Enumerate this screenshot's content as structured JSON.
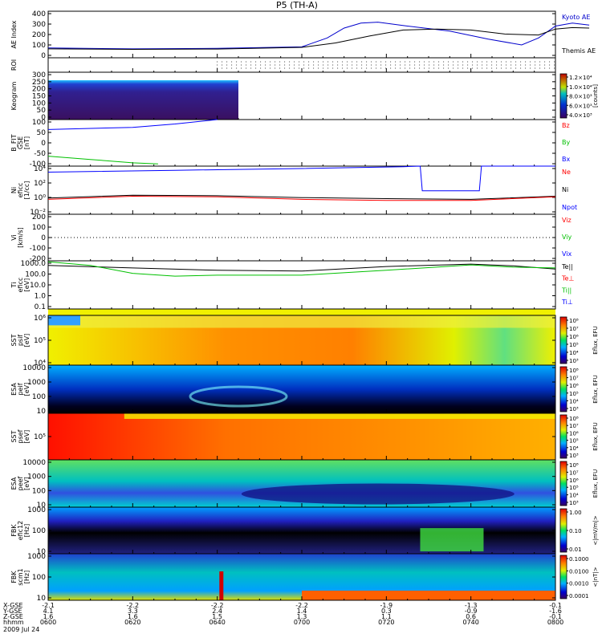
{
  "title": "P5 (TH-A)",
  "colors": {
    "blue": "#0000ff",
    "green": "#00c000",
    "red": "#ff0000",
    "black": "#000000",
    "navy": "#0000cc"
  },
  "panels": [
    {
      "id": "ae",
      "ylabel": [
        "AE Index"
      ],
      "ticks": [
        "400",
        "300",
        "200",
        "100",
        "0"
      ],
      "legend": [
        {
          "text": "Kyoto AE",
          "color": "#0000cc"
        },
        {
          "text": "Themis AE",
          "color": "#000000"
        }
      ]
    },
    {
      "id": "roi",
      "ylabel": [
        "ROI"
      ],
      "ticks": [],
      "legend": []
    },
    {
      "id": "keo",
      "ylabel": [
        "Keogram"
      ],
      "ticks": [
        "300",
        "250",
        "200",
        "150",
        "100",
        "50",
        "0"
      ],
      "legend": [],
      "cbar_label": "[counts]",
      "cbar_ticks": [
        "1.2×10⁴",
        "1.0×10⁴",
        "8.0×10³",
        "6.0×10³",
        "4.0×10³"
      ]
    },
    {
      "id": "bfit",
      "ylabel": [
        "B_FIT",
        "GSE",
        "[nT]"
      ],
      "ticks": [
        "100",
        "50",
        "0",
        "-50",
        "-100"
      ],
      "legend": [
        {
          "text": "Bz",
          "color": "#ff0000"
        },
        {
          "text": "By",
          "color": "#00c000"
        },
        {
          "text": "Bx",
          "color": "#0000ff"
        }
      ]
    },
    {
      "id": "ni",
      "ylabel": [
        "Ni",
        "eficc",
        "[1/cc]"
      ],
      "ticks": [
        "10⁴",
        "10²",
        "10⁰",
        "10⁻²"
      ],
      "legend": [
        {
          "text": "Ne",
          "color": "#ff0000"
        },
        {
          "text": "Ni",
          "color": "#000000"
        },
        {
          "text": "Npot",
          "color": "#0000ff"
        }
      ]
    },
    {
      "id": "vi",
      "ylabel": [
        "Vi",
        "[km/s]"
      ],
      "ticks": [
        "200",
        "100",
        "0",
        "-100",
        "-200"
      ],
      "legend": [
        {
          "text": "Viz",
          "color": "#ff0000"
        },
        {
          "text": "Viy",
          "color": "#00c000"
        },
        {
          "text": "Vix",
          "color": "#0000ff"
        }
      ]
    },
    {
      "id": "ti",
      "ylabel": [
        "Ti",
        "eficc",
        "[eV]"
      ],
      "ticks": [
        "1000.0",
        "100.0",
        "10.0",
        "1.0",
        "0.1"
      ],
      "legend": [
        {
          "text": "Te||",
          "color": "#000000"
        },
        {
          "text": "Te⊥",
          "color": "#ff0000"
        },
        {
          "text": "Ti||",
          "color": "#00c000"
        },
        {
          "text": "Ti⊥",
          "color": "#0000ff"
        }
      ]
    },
    {
      "id": "sst_i",
      "ylabel": [
        "SST",
        "psif",
        "[eV]"
      ],
      "ticks": [
        "10⁶",
        "10⁵",
        "10⁴"
      ],
      "legend": [],
      "cbar_label": "Eflux, EFU",
      "cbar_ticks": [
        "10⁸",
        "10⁷",
        "10⁶",
        "10⁵",
        "10⁴",
        "10³"
      ]
    },
    {
      "id": "esa_i",
      "ylabel": [
        "ESA",
        "peif",
        "[eV]"
      ],
      "ticks": [
        "10000",
        "1000",
        "100",
        "10"
      ],
      "legend": [],
      "cbar_label": "Eflux, EFU",
      "cbar_ticks": [
        "10⁸",
        "10⁷",
        "10⁶",
        "10⁵",
        "10⁴",
        "10³"
      ]
    },
    {
      "id": "sst_e",
      "ylabel": [
        "SST",
        "psef",
        "[eV]"
      ],
      "ticks": [
        "10⁵"
      ],
      "legend": [],
      "cbar_label": "Eflux, EFU",
      "cbar_ticks": [
        "10⁸",
        "10⁷",
        "10⁶",
        "10⁵",
        "10⁴",
        "10³"
      ]
    },
    {
      "id": "esa_e",
      "ylabel": [
        "ESA",
        "peef",
        "[eV]"
      ],
      "ticks": [
        "10000",
        "1000",
        "100",
        "10"
      ],
      "legend": [],
      "cbar_label": "Eflux, EFU",
      "cbar_ticks": [
        "10⁸",
        "10⁷",
        "10⁶",
        "10⁵",
        "10⁴",
        "10³"
      ]
    },
    {
      "id": "fbk_e",
      "ylabel": [
        "FBK",
        "efic12",
        "[Hz]"
      ],
      "ticks": [
        "1000",
        "100",
        "10"
      ],
      "legend": [],
      "cbar_label": "<|mV/m|>",
      "cbar_ticks": [
        "1.00",
        "0.10",
        "0.01"
      ]
    },
    {
      "id": "fbk_b",
      "ylabel": [
        "FBK",
        "scm1",
        "[Hz]"
      ],
      "ticks": [
        "1000",
        "100",
        "10"
      ],
      "legend": [],
      "cbar_label": "<|nT|>",
      "cbar_ticks": [
        "0.1000",
        "0.0100",
        "0.0010",
        "0.0001"
      ]
    }
  ],
  "footer": {
    "row_labels": [
      "X-GSE",
      "Y-GSE",
      "Z-GSE",
      "hhmm",
      "2009 Jul 24"
    ],
    "columns": [
      [
        "-2.1",
        "4.1",
        "1.6",
        "0600"
      ],
      [
        "-2.2",
        "3.3",
        "1.6",
        "0620"
      ],
      [
        "-2.2",
        "2.4",
        "1.5",
        "0640"
      ],
      [
        "-2.2",
        "1.4",
        "1.3",
        "0700"
      ],
      [
        "-1.9",
        "0.3",
        "1.1",
        "0720"
      ],
      [
        "-1.3",
        "-0.9",
        "0.6",
        "0740"
      ],
      [
        "-0.1",
        "-1.6",
        "-0.1",
        "0800"
      ]
    ]
  },
  "chart_data": {
    "type": "line",
    "title": "P5 (TH-A)",
    "x_label": "hhmm",
    "x": [
      "0600",
      "0620",
      "0640",
      "0700",
      "0720",
      "0740",
      "0800"
    ],
    "xlim": [
      "0600",
      "0800"
    ],
    "series": [
      {
        "name": "Kyoto AE",
        "panel": "ae",
        "points": [
          [
            0,
            50
          ],
          [
            20,
            40
          ],
          [
            40,
            45
          ],
          [
            60,
            60
          ],
          [
            66,
            150
          ],
          [
            70,
            250
          ],
          [
            74,
            300
          ],
          [
            78,
            310
          ],
          [
            85,
            270
          ],
          [
            95,
            220
          ],
          [
            104,
            140
          ],
          [
            112,
            80
          ],
          [
            116,
            150
          ],
          [
            120,
            270
          ],
          [
            124,
            300
          ],
          [
            128,
            280
          ]
        ]
      },
      {
        "name": "Themis AE",
        "panel": "ae",
        "points": [
          [
            0,
            40
          ],
          [
            20,
            35
          ],
          [
            40,
            38
          ],
          [
            60,
            55
          ],
          [
            68,
            100
          ],
          [
            76,
            170
          ],
          [
            84,
            230
          ],
          [
            92,
            240
          ],
          [
            100,
            230
          ],
          [
            108,
            190
          ],
          [
            116,
            180
          ],
          [
            120,
            240
          ],
          [
            124,
            255
          ],
          [
            128,
            250
          ]
        ]
      },
      {
        "name": "Bx",
        "panel": "bfit",
        "points": [
          [
            0,
            55
          ],
          [
            20,
            65
          ],
          [
            30,
            80
          ],
          [
            40,
            100
          ]
        ]
      },
      {
        "name": "By",
        "panel": "bfit",
        "points": [
          [
            0,
            -65
          ],
          [
            10,
            -80
          ],
          [
            20,
            -95
          ],
          [
            26,
            -100
          ]
        ]
      },
      {
        "name": "Npot",
        "panel": "ni",
        "points": [
          [
            0,
            10000
          ],
          [
            30,
            20000
          ],
          [
            60,
            40000
          ],
          [
            84,
            80000
          ],
          [
            88,
            100000
          ],
          [
            88.5,
            8
          ],
          [
            102,
            8
          ],
          [
            102.5,
            100000
          ],
          [
            120,
            150000
          ]
        ]
      },
      {
        "name": "Ni",
        "panel": "ni",
        "points": [
          [
            0,
            0.5
          ],
          [
            20,
            1.5
          ],
          [
            40,
            1.2
          ],
          [
            60,
            0.6
          ],
          [
            80,
            0.4
          ],
          [
            100,
            0.3
          ],
          [
            120,
            1
          ]
        ]
      },
      {
        "name": "Ne",
        "panel": "ni",
        "points": [
          [
            0,
            0.3
          ],
          [
            20,
            1.0
          ],
          [
            40,
            0.8
          ],
          [
            60,
            0.3
          ],
          [
            80,
            0.2
          ],
          [
            100,
            0.2
          ],
          [
            120,
            0.8
          ]
        ]
      },
      {
        "name": "Te||",
        "panel": "ti",
        "points": [
          [
            0,
            900
          ],
          [
            20,
            500
          ],
          [
            40,
            300
          ],
          [
            60,
            250
          ],
          [
            80,
            700
          ],
          [
            100,
            1200
          ],
          [
            110,
            800
          ],
          [
            120,
            400
          ]
        ]
      },
      {
        "name": "Ti||",
        "panel": "ti",
        "points": [
          [
            0,
            2000
          ],
          [
            10,
            900
          ],
          [
            20,
            150
          ],
          [
            30,
            80
          ],
          [
            40,
            100
          ],
          [
            60,
            100
          ],
          [
            80,
            300
          ],
          [
            100,
            1000
          ],
          [
            110,
            600
          ],
          [
            120,
            500
          ]
        ]
      }
    ]
  }
}
